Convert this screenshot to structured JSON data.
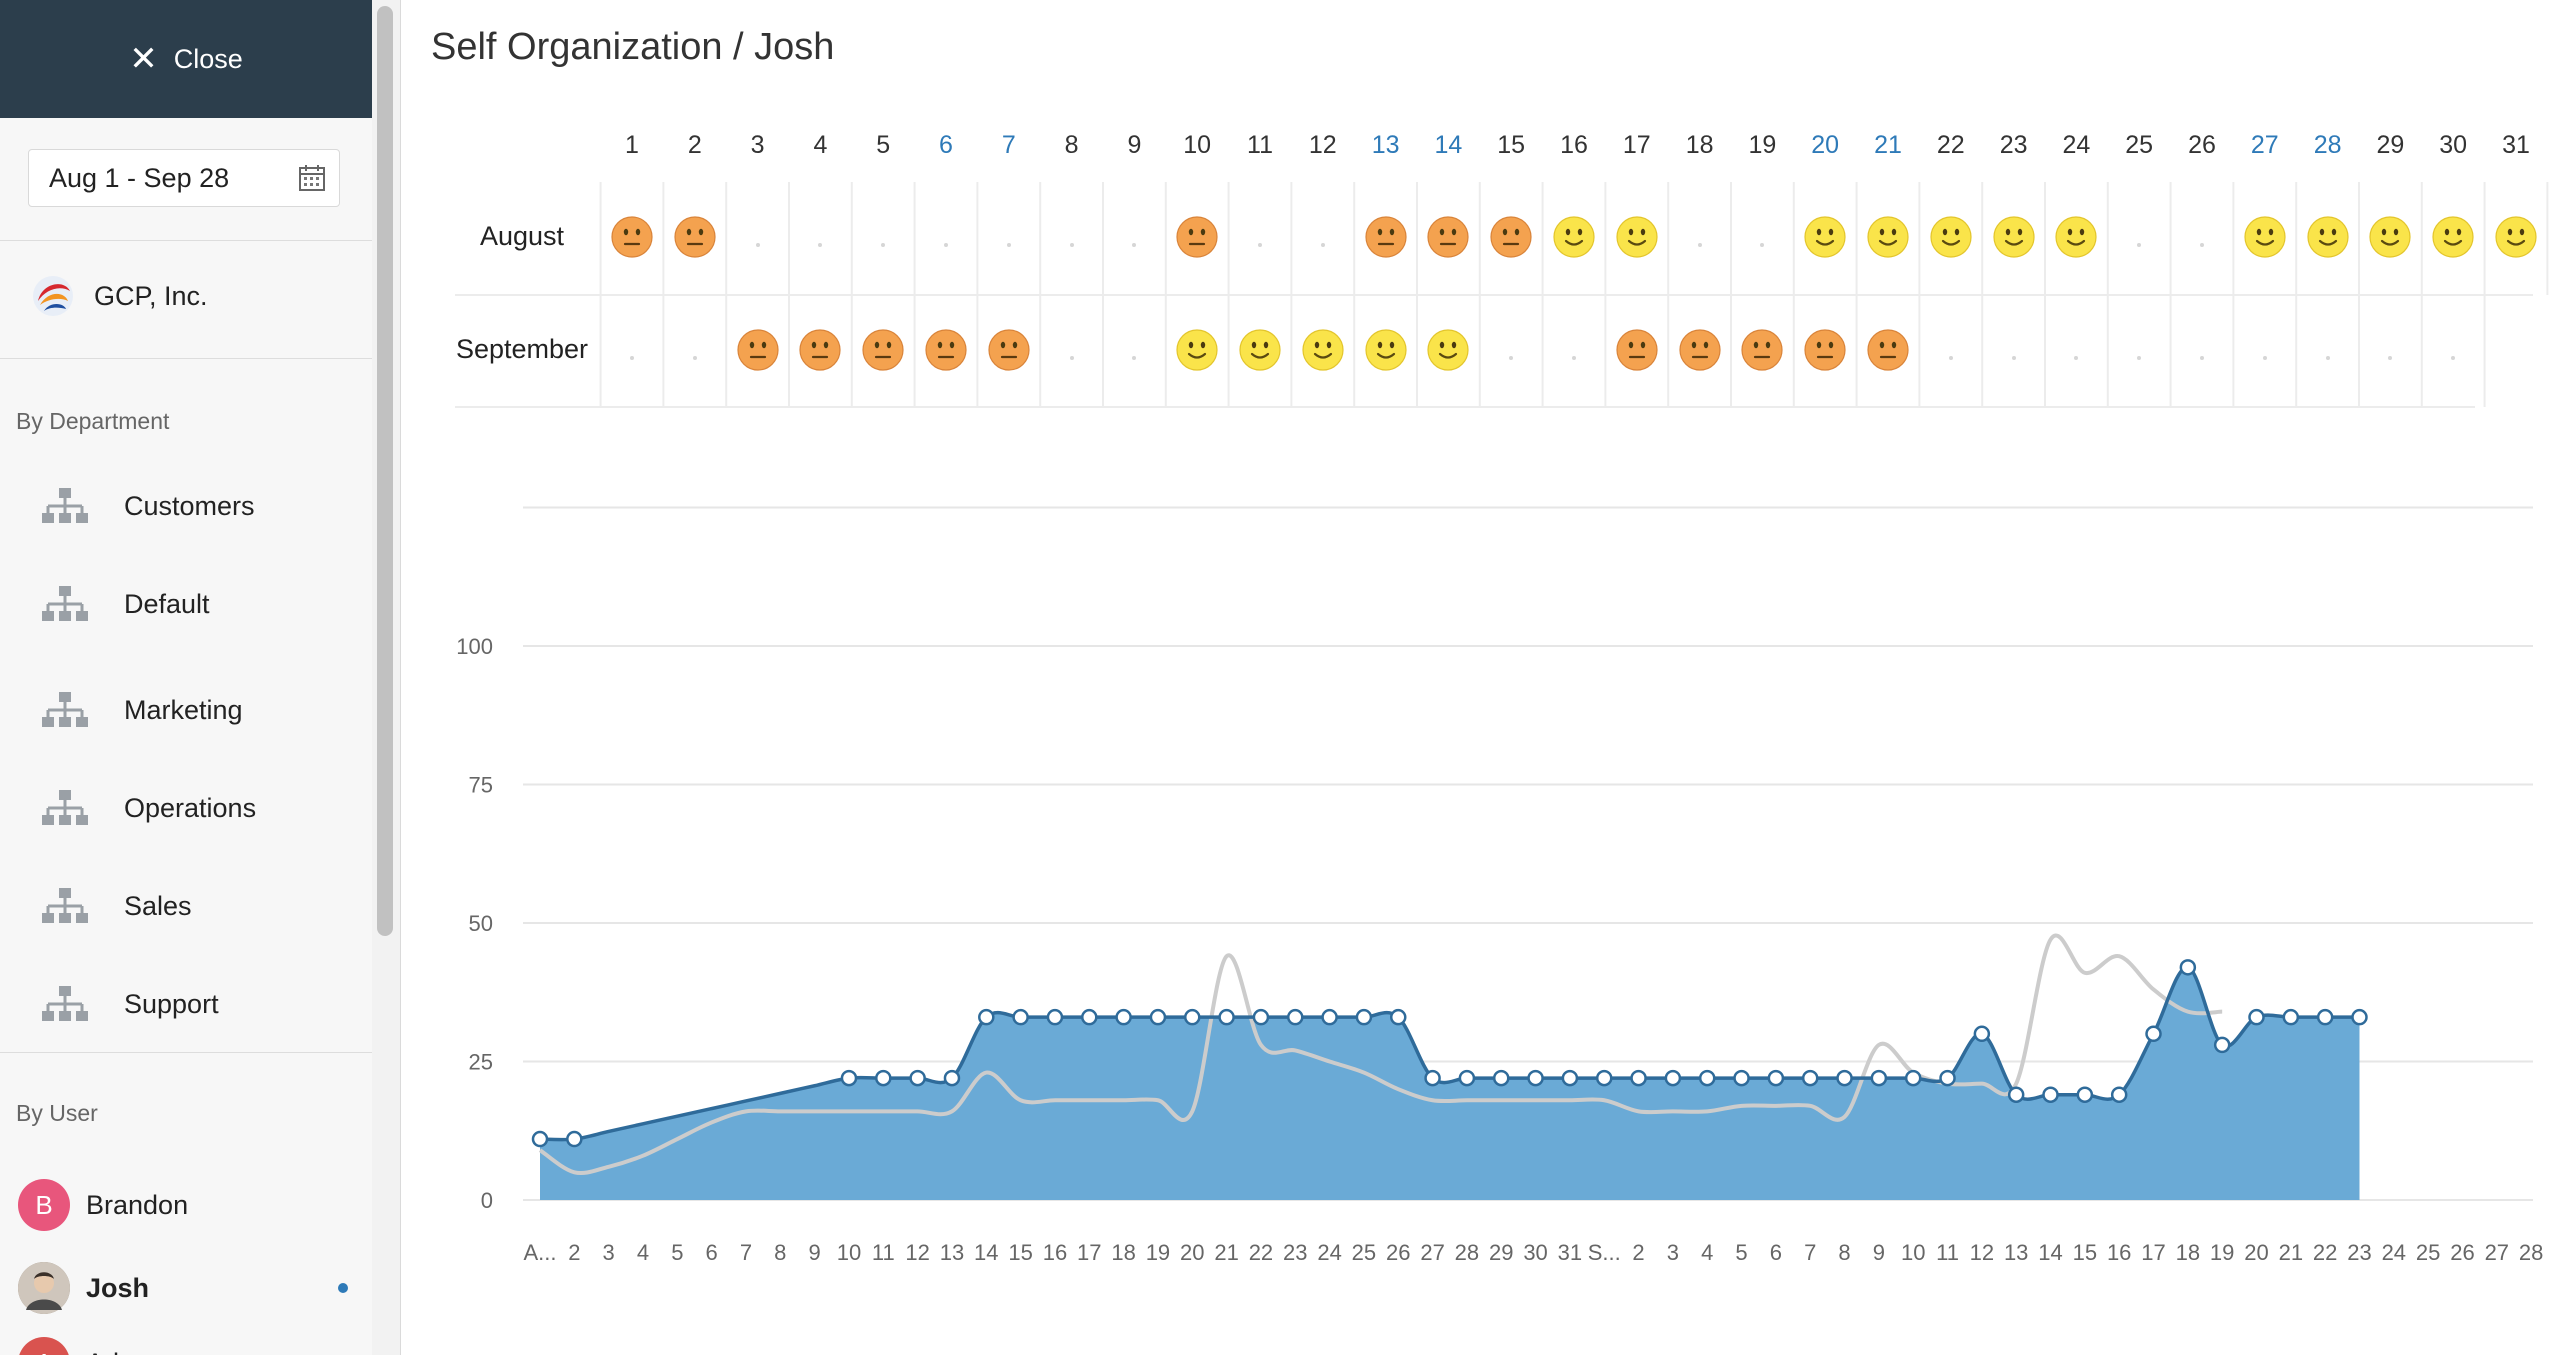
{
  "sidebar": {
    "close_label": "Close",
    "date_range": "Aug 1 - Sep 28",
    "org_name": "GCP, Inc.",
    "departments_label": "By Department",
    "departments": [
      "Customers",
      "Default",
      "Marketing",
      "Operations",
      "Sales",
      "Support"
    ],
    "users_label": "By User",
    "users": [
      {
        "initial": "B",
        "name": "Brandon",
        "color": "#e8567c",
        "active": false
      },
      {
        "initial": "",
        "name": "Josh",
        "color": "#8a7a6a",
        "active": true
      },
      {
        "initial": "A",
        "name": "Adam",
        "color": "#d9534f",
        "active": false
      }
    ]
  },
  "main": {
    "title": "Self Organization / Josh"
  },
  "calendar": {
    "days": [
      1,
      2,
      3,
      4,
      5,
      6,
      7,
      8,
      9,
      10,
      11,
      12,
      13,
      14,
      15,
      16,
      17,
      18,
      19,
      20,
      21,
      22,
      23,
      24,
      25,
      26,
      27,
      28,
      29,
      30,
      31
    ],
    "weekend_days": [
      6,
      7,
      13,
      14,
      20,
      21,
      27,
      28
    ],
    "colors": {
      "weekday": "#333333",
      "weekend": "#2e7ab8"
    },
    "months": [
      {
        "name": "August",
        "moods": [
          "unhappy",
          "unhappy",
          "none",
          "none",
          "none",
          "none",
          "none",
          "none",
          "none",
          "unhappy",
          "none",
          "none",
          "unhappy",
          "unhappy",
          "unhappy",
          "happy",
          "happy",
          "none",
          "none",
          "happy",
          "happy",
          "happy",
          "happy",
          "happy",
          "none",
          "none",
          "happy",
          "happy",
          "happy",
          "happy",
          "happy"
        ]
      },
      {
        "name": "September",
        "moods": [
          "none",
          "none",
          "unhappy",
          "unhappy",
          "unhappy",
          "unhappy",
          "unhappy",
          "none",
          "none",
          "happy",
          "happy",
          "happy",
          "happy",
          "happy",
          "none",
          "none",
          "unhappy",
          "unhappy",
          "unhappy",
          "unhappy",
          "unhappy",
          "none",
          "none",
          "none",
          "none",
          "none",
          "none",
          "none",
          "none",
          "none"
        ]
      }
    ]
  },
  "chart_data": {
    "type": "area",
    "title": "",
    "ylim": [
      0,
      125
    ],
    "yticks": [
      0,
      25,
      50,
      75,
      100
    ],
    "x_tick_labels": [
      "A...",
      "2",
      "3",
      "4",
      "5",
      "6",
      "7",
      "8",
      "9",
      "10",
      "11",
      "12",
      "13",
      "14",
      "15",
      "16",
      "17",
      "18",
      "19",
      "20",
      "21",
      "22",
      "23",
      "24",
      "25",
      "26",
      "27",
      "28",
      "29",
      "30",
      "31",
      "S...",
      "2",
      "3",
      "4",
      "5",
      "6",
      "7",
      "8",
      "9",
      "10",
      "11",
      "12",
      "13",
      "14",
      "15",
      "16",
      "17",
      "18",
      "19",
      "20",
      "21",
      "22",
      "23",
      "24",
      "25",
      "26",
      "27",
      "28"
    ],
    "series": [
      {
        "fill": "#6aaad6",
        "stroke": "#2f6b9a",
        "values": [
          11,
          11,
          null,
          null,
          null,
          null,
          null,
          null,
          null,
          22,
          22,
          22,
          22,
          33,
          33,
          33,
          33,
          33,
          33,
          33,
          33,
          33,
          33,
          33,
          33,
          33,
          22,
          22,
          22,
          22,
          22,
          22,
          22,
          22,
          22,
          22,
          22,
          22,
          22,
          22,
          22,
          22,
          30,
          19,
          19,
          19,
          19,
          30,
          42,
          28,
          33,
          33,
          33,
          33
        ]
      },
      {
        "stroke": "#cccccc",
        "values": [
          9,
          5,
          6,
          8,
          11,
          14,
          16,
          16,
          16,
          16,
          16,
          16,
          16,
          23,
          18,
          18,
          18,
          18,
          18,
          16,
          44,
          28,
          27,
          25,
          23,
          20,
          18,
          18,
          18,
          18,
          18,
          18,
          16,
          16,
          16,
          17,
          17,
          17,
          15,
          28,
          23,
          21,
          21,
          21,
          47,
          41,
          44,
          38,
          34,
          34
        ]
      }
    ]
  }
}
